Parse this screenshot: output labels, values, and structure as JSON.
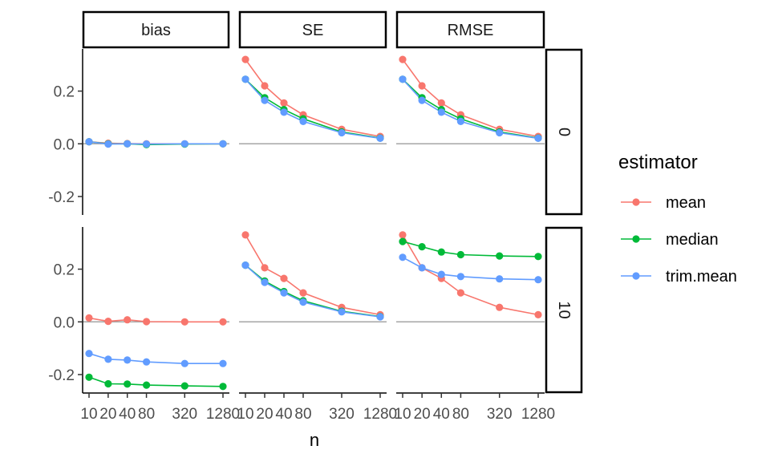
{
  "chart_data": {
    "type": "line",
    "xlabel": "n",
    "ylabel": "",
    "x_ticks": [
      10,
      20,
      40,
      80,
      320,
      1280
    ],
    "y_ticks": [
      -0.2,
      0.0,
      0.2
    ],
    "ylim": [
      -0.27,
      0.36
    ],
    "column_facets": [
      "bias",
      "SE",
      "RMSE"
    ],
    "row_facets": [
      "0",
      "10"
    ],
    "legend": {
      "title": "estimator",
      "position": "right"
    },
    "series": [
      {
        "name": "mean",
        "color": "#F8766D"
      },
      {
        "name": "median",
        "color": "#00BA38"
      },
      {
        "name": "trim.mean",
        "color": "#619CFF"
      }
    ],
    "panels": [
      {
        "row": "0",
        "col": "bias",
        "lines": {
          "mean": [
            0.008,
            0.002,
            0.001,
            0.0,
            0.0,
            0.0
          ],
          "median": [
            0.008,
            0.0,
            0.0,
            -0.003,
            -0.001,
            0.0
          ],
          "trim.mean": [
            0.008,
            -0.001,
            0.0,
            -0.001,
            0.0,
            0.0
          ]
        }
      },
      {
        "row": "0",
        "col": "SE",
        "lines": {
          "mean": [
            0.32,
            0.22,
            0.155,
            0.11,
            0.055,
            0.028
          ],
          "median": [
            0.245,
            0.175,
            0.13,
            0.095,
            0.045,
            0.022
          ],
          "trim.mean": [
            0.245,
            0.165,
            0.12,
            0.085,
            0.042,
            0.021
          ]
        }
      },
      {
        "row": "0",
        "col": "RMSE",
        "lines": {
          "mean": [
            0.32,
            0.22,
            0.155,
            0.11,
            0.055,
            0.028
          ],
          "median": [
            0.245,
            0.175,
            0.13,
            0.095,
            0.045,
            0.022
          ],
          "trim.mean": [
            0.245,
            0.165,
            0.12,
            0.085,
            0.042,
            0.021
          ]
        }
      },
      {
        "row": "10",
        "col": "bias",
        "lines": {
          "mean": [
            0.015,
            0.002,
            0.008,
            0.001,
            0.0,
            0.0
          ],
          "median": [
            -0.21,
            -0.235,
            -0.236,
            -0.24,
            -0.243,
            -0.245
          ],
          "trim.mean": [
            -0.12,
            -0.142,
            -0.145,
            -0.152,
            -0.158,
            -0.158
          ]
        }
      },
      {
        "row": "10",
        "col": "SE",
        "lines": {
          "mean": [
            0.33,
            0.205,
            0.165,
            0.11,
            0.055,
            0.027
          ],
          "median": [
            0.215,
            0.155,
            0.115,
            0.08,
            0.04,
            0.02
          ],
          "trim.mean": [
            0.215,
            0.15,
            0.11,
            0.075,
            0.038,
            0.019
          ]
        }
      },
      {
        "row": "10",
        "col": "RMSE",
        "lines": {
          "mean": [
            0.33,
            0.205,
            0.165,
            0.11,
            0.055,
            0.027
          ],
          "median": [
            0.305,
            0.285,
            0.265,
            0.255,
            0.25,
            0.248
          ],
          "trim.mean": [
            0.245,
            0.205,
            0.18,
            0.172,
            0.163,
            0.16
          ]
        }
      }
    ]
  }
}
